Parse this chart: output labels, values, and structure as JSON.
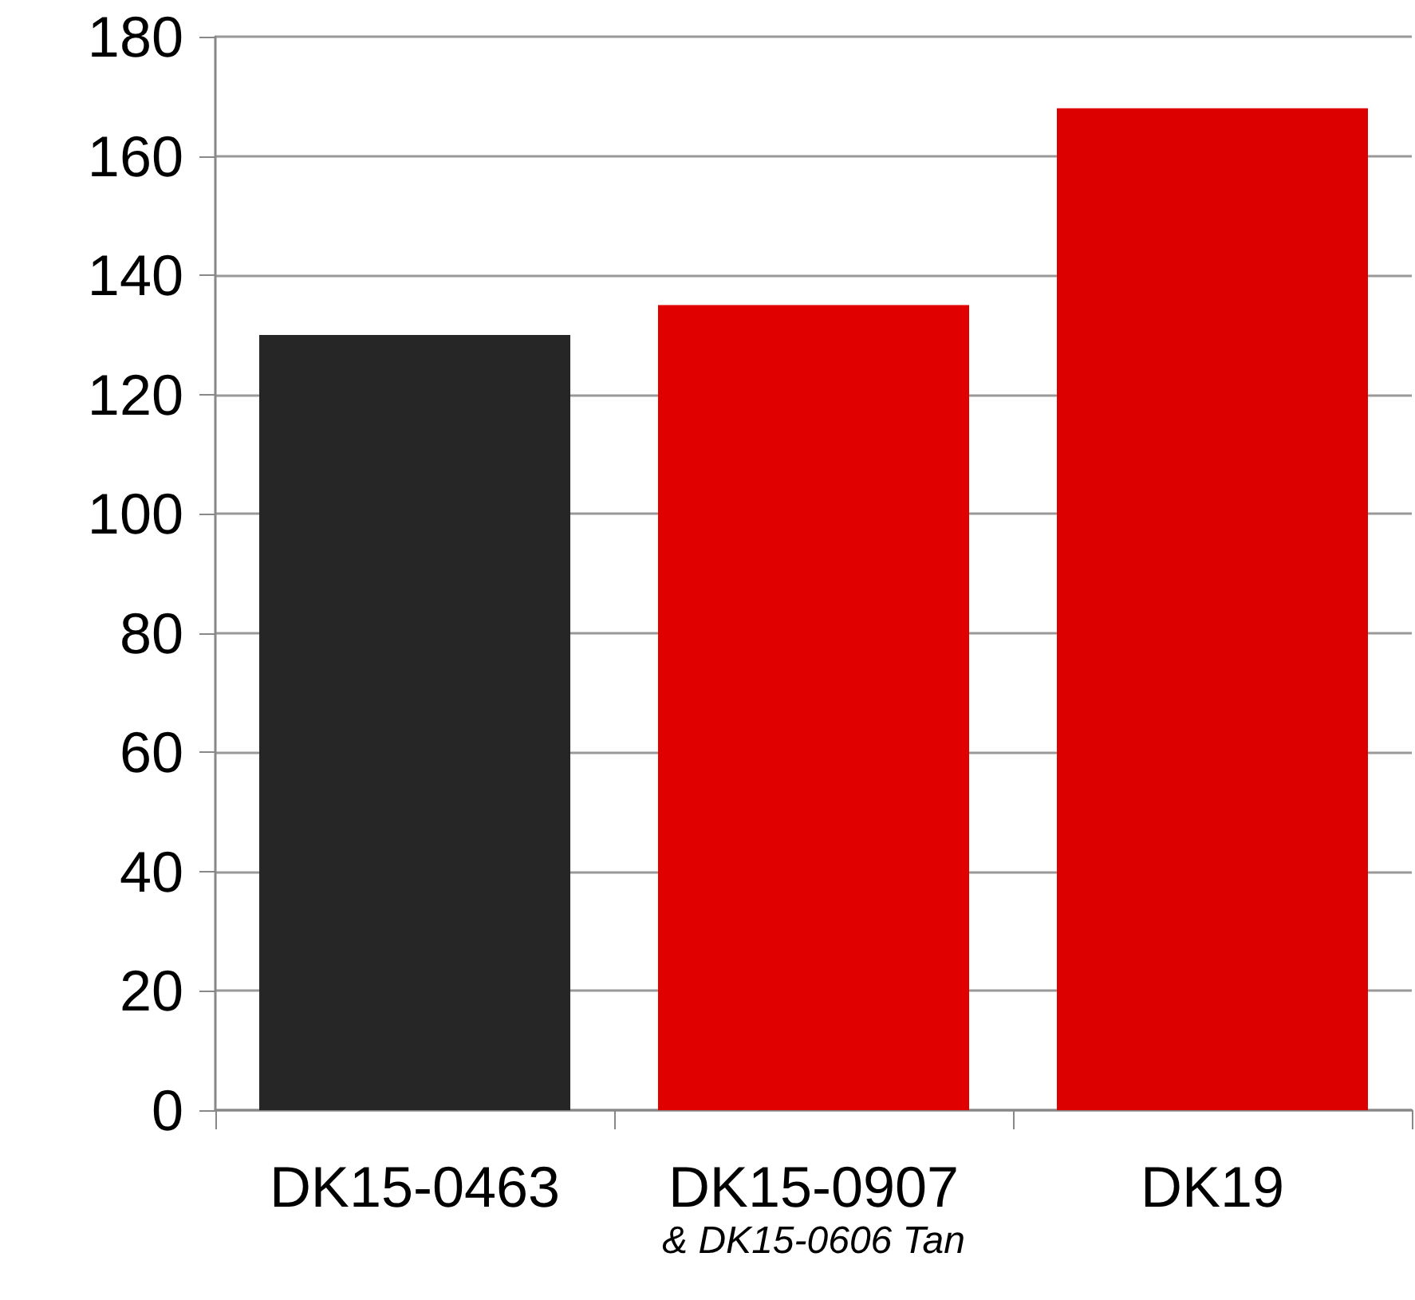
{
  "chart_data": {
    "type": "bar",
    "categories": [
      "DK15-0463",
      "DK15-0907\n& DK15-0606 Tan",
      "DK19"
    ],
    "values": [
      130,
      135,
      168
    ],
    "colors": [
      "#262626",
      "#e00000",
      "#dd0000"
    ],
    "ylim": [
      0,
      180
    ],
    "yticks": [
      0,
      20,
      40,
      60,
      80,
      100,
      120,
      140,
      160,
      180
    ],
    "grid": "y"
  }
}
